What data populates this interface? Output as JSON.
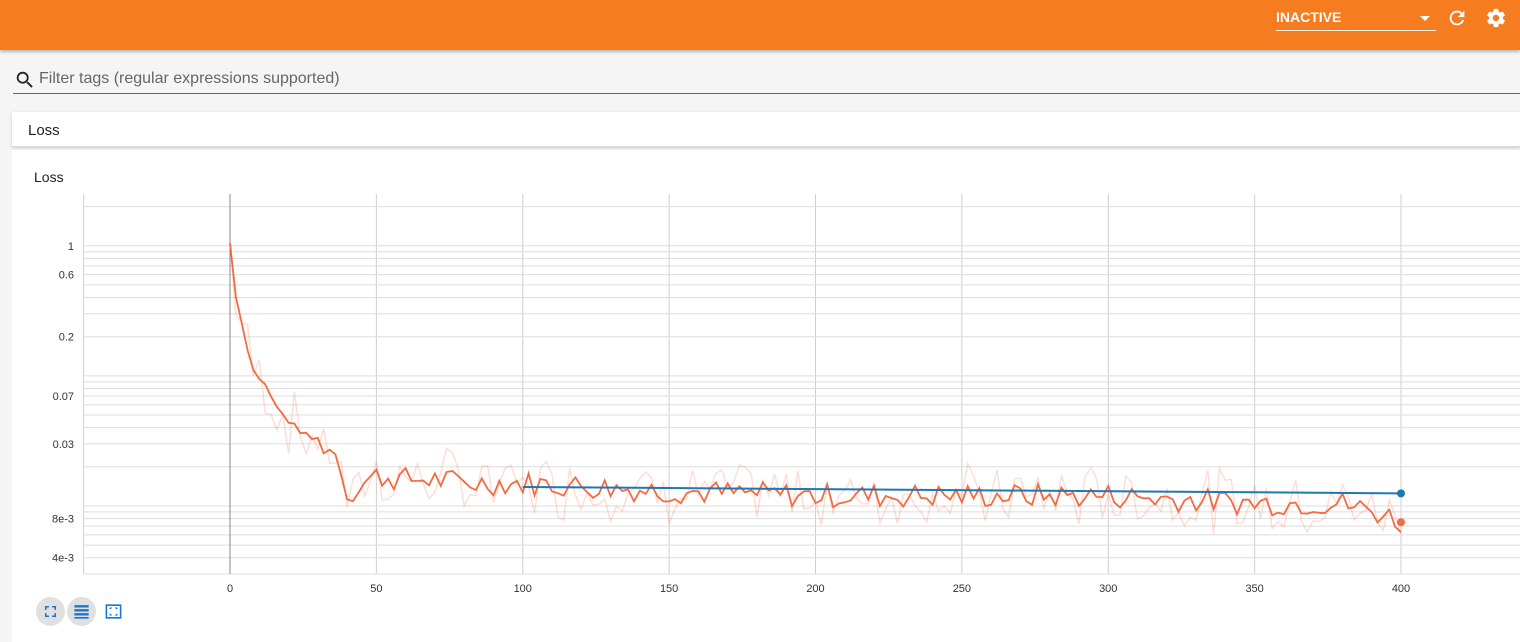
{
  "header": {
    "run_selector_value": "INACTIVE",
    "reload_icon": "reload-icon",
    "settings_icon": "settings-gear-icon",
    "background_color": "#f57c1f"
  },
  "filter": {
    "placeholder": "Filter tags (regular expressions supported)",
    "icon": "search-icon"
  },
  "category": {
    "title": "Loss"
  },
  "chart_card": {
    "buttons": [
      {
        "name": "expand-chart-button",
        "icon": "fullscreen-icon"
      },
      {
        "name": "log-scale-toggle-button",
        "icon": "lines-icon"
      },
      {
        "name": "fit-domain-button",
        "icon": "fit-to-data-icon"
      }
    ]
  },
  "chart_data": {
    "type": "line",
    "title": "Loss",
    "xlabel": "",
    "ylabel": "",
    "y_scale": "log",
    "xlim": [
      -50,
      430
    ],
    "ylim": [
      0.003,
      2.5
    ],
    "x_ticks": [
      "0",
      "50",
      "100",
      "150",
      "200",
      "250",
      "300",
      "350",
      "400"
    ],
    "y_ticks": [
      "1",
      "0.6",
      "0.2",
      "0.07",
      "0.03",
      "8e-3",
      "4e-3"
    ],
    "grid": true,
    "series": [
      {
        "color": "#f26b43",
        "smoothed": true,
        "key_points": {
          "x": [
            0,
            2,
            5,
            8,
            12,
            16,
            20,
            25,
            30,
            35,
            38,
            40,
            45,
            50,
            60,
            70,
            80,
            90,
            100,
            150,
            200,
            250,
            300,
            350,
            380,
            395,
            400
          ],
          "y": [
            1.05,
            0.42,
            0.2,
            0.11,
            0.085,
            0.057,
            0.045,
            0.036,
            0.031,
            0.027,
            0.02,
            0.012,
            0.015,
            0.017,
            0.016,
            0.016,
            0.015,
            0.015,
            0.015,
            0.013,
            0.012,
            0.012,
            0.012,
            0.0105,
            0.0105,
            0.0085,
            0.0075
          ]
        }
      },
      {
        "color": "#1f77b4",
        "smoothed": false,
        "x": [
          100,
          400
        ],
        "y": [
          0.014,
          0.0125
        ]
      }
    ]
  }
}
